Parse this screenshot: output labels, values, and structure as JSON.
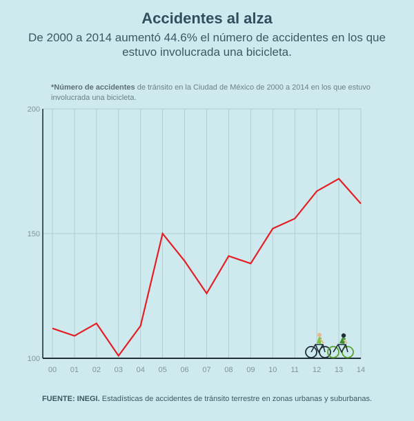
{
  "header": {
    "title": "Accidentes al alza",
    "subtitle": "De 2000 a 2014 aumentó 44.6% el número de accidentes en los que estuvo involucrada una bicicleta."
  },
  "note": {
    "bold": "*Número de accidentes",
    "rest": " de tránsito en la Ciudad de México de 2000 a 2014 en los que estuvo involucrada una bicicleta."
  },
  "footer": {
    "bold": "FUENTE: INEGI.",
    "rest": " Estadísticas de accidentes de tránsito terrestre en zonas urbanas y suburbanas."
  },
  "icons": [
    "bicycle-rider-icon",
    "bicycle-rider-icon"
  ],
  "colors": {
    "background": "#cfeaee",
    "line": "#e31e24",
    "axis": "#1f2f3a",
    "grid": "#a9c6cb"
  },
  "chart_data": {
    "type": "line",
    "title": "Accidentes al alza",
    "categories": [
      "00",
      "01",
      "02",
      "03",
      "04",
      "05",
      "06",
      "07",
      "08",
      "09",
      "10",
      "11",
      "12",
      "13",
      "14"
    ],
    "values": [
      112,
      109,
      114,
      101,
      113,
      150,
      139,
      126,
      141,
      138,
      152,
      156,
      167,
      172,
      162
    ],
    "xlabel": "",
    "ylabel": "",
    "ylim": [
      100,
      200
    ],
    "yticks": [
      100,
      150,
      200
    ],
    "grid": true,
    "legend": "none"
  }
}
